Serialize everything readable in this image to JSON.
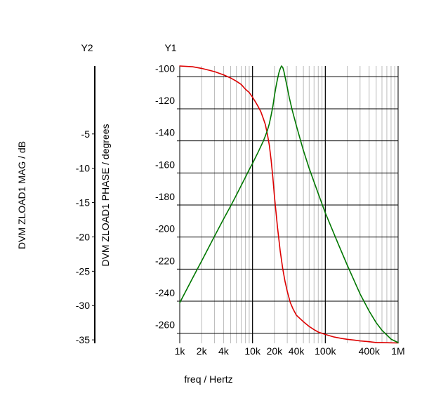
{
  "chart_data": {
    "type": "line",
    "xlabel": "freq / Hertz",
    "x_scale": "log",
    "xlim": [
      1000,
      1000000
    ],
    "x_ticks": [
      {
        "value": 1000,
        "label": "1k"
      },
      {
        "value": 2000,
        "label": "2k"
      },
      {
        "value": 4000,
        "label": "4k"
      },
      {
        "value": 10000,
        "label": "10k"
      },
      {
        "value": 20000,
        "label": "20k"
      },
      {
        "value": 40000,
        "label": "40k"
      },
      {
        "value": 100000,
        "label": "100k"
      },
      {
        "value": 400000,
        "label": "400k"
      },
      {
        "value": 1000000,
        "label": "1M"
      }
    ],
    "y1": {
      "title": "Y1",
      "label": "DVM ZLOAD1 PHASE / degrees",
      "ylim": [
        -266.5,
        -93.5
      ],
      "ticks": [
        -100,
        -120,
        -140,
        -160,
        -180,
        -200,
        -220,
        -240,
        -260
      ]
    },
    "y2": {
      "title": "Y2",
      "label": "DVM ZLOAD1 MAG / dB",
      "ylim": [
        -35.5,
        4.9
      ],
      "ticks": [
        -5,
        -10,
        -15,
        -20,
        -25,
        -30,
        -35
      ]
    },
    "grid": true,
    "series": [
      {
        "axis": "y1",
        "color": "#dd0000",
        "x": [
          1000,
          1500,
          2000,
          3000,
          4000,
          5000,
          6000,
          7000,
          8000,
          9000,
          10000,
          11000,
          12000,
          13000,
          14000,
          15000,
          16000,
          17000,
          18000,
          19000,
          20000,
          22000,
          24000,
          26000,
          28000,
          30000,
          33000,
          36000,
          40000,
          50000,
          60000,
          70000,
          80000,
          100000,
          130000,
          170000,
          200000,
          250000,
          300000,
          400000,
          500000,
          600000,
          800000,
          1000000
        ],
        "y": [
          -93.5,
          -94,
          -95,
          -97,
          -99,
          -101,
          -103,
          -105,
          -108,
          -110,
          -113,
          -116,
          -119,
          -122,
          -126,
          -130,
          -136,
          -143,
          -152,
          -163,
          -175,
          -194,
          -209,
          -220,
          -228,
          -234,
          -241,
          -245,
          -249,
          -253,
          -256,
          -258,
          -259.5,
          -261,
          -262.5,
          -263.5,
          -264,
          -264.5,
          -265,
          -265.5,
          -266,
          -266,
          -266.2,
          -266.3
        ]
      },
      {
        "axis": "y2",
        "color": "#007700",
        "x": [
          1000,
          1500,
          2000,
          3000,
          4000,
          5000,
          6000,
          7000,
          8000,
          9000,
          10000,
          11000,
          12000,
          13000,
          14000,
          15000,
          16000,
          17000,
          18000,
          19000,
          20000,
          21000,
          22000,
          23000,
          24000,
          25000,
          26000,
          27000,
          28000,
          30000,
          32000,
          35000,
          40000,
          50000,
          60000,
          80000,
          100000,
          150000,
          200000,
          300000,
          400000,
          500000,
          600000,
          800000,
          1000000
        ],
        "y": [
          -29.6,
          -26.0,
          -23.5,
          -19.9,
          -17.4,
          -15.5,
          -13.9,
          -12.5,
          -11.3,
          -10.2,
          -9.3,
          -8.4,
          -7.6,
          -6.8,
          -6.1,
          -5.3,
          -4.5,
          -3.5,
          -2.3,
          -1.0,
          0.6,
          1.9,
          3.0,
          3.9,
          4.5,
          4.9,
          4.7,
          4.1,
          3.3,
          1.8,
          0.3,
          -1.5,
          -3.8,
          -7.4,
          -10.0,
          -13.7,
          -16.5,
          -21.0,
          -24.1,
          -28.3,
          -30.8,
          -32.5,
          -33.6,
          -34.9,
          -35.4
        ]
      }
    ]
  }
}
